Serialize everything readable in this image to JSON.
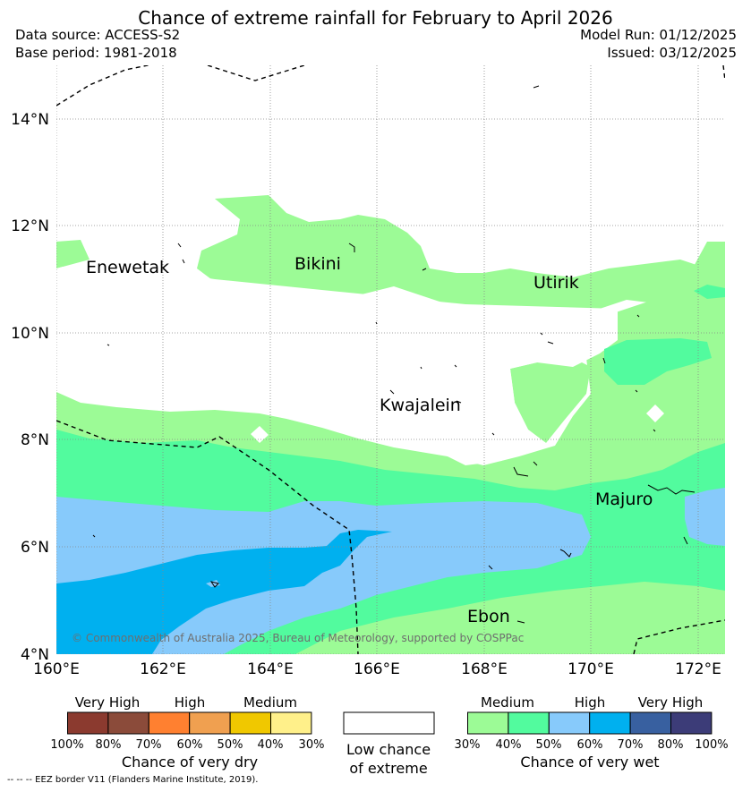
{
  "title": "Chance of extreme rainfall for February to April 2026",
  "data_source": "Data source: ACCESS-S2",
  "base_period": "Base period: 1981-2018",
  "model_run": "Model Run: 01/12/2025",
  "issued": "Issued: 03/12/2025",
  "map": {
    "lat_labels": [
      "14°N",
      "12°N",
      "10°N",
      "8°N",
      "6°N",
      "4°N"
    ],
    "lon_labels": [
      "160°E",
      "162°E",
      "164°E",
      "166°E",
      "168°E",
      "170°E",
      "172°E"
    ],
    "places": [
      {
        "name": "Enewetak"
      },
      {
        "name": "Bikini"
      },
      {
        "name": "Utirik"
      },
      {
        "name": "Kwajalein"
      },
      {
        "name": "Majuro"
      },
      {
        "name": "Ebon"
      }
    ],
    "copyright": "© Commonwealth of Australia 2025, Bureau of Meteorology, supported by COSPPac"
  },
  "legend": {
    "dry": {
      "heads": [
        "Very High",
        "High",
        "Medium"
      ],
      "ticks": [
        "100%",
        "80%",
        "70%",
        "60%",
        "50%",
        "40%",
        "30%"
      ],
      "colors": [
        "#8b3a2f",
        "#8b4b3a",
        "#ff8030",
        "#f0a050",
        "#f0c800",
        "#fff08a"
      ],
      "caption": "Chance of very dry"
    },
    "none": {
      "line1": "Low chance",
      "line2": "of extreme",
      "color": "#ffffff"
    },
    "wet": {
      "heads": [
        "Medium",
        "High",
        "Very High"
      ],
      "ticks": [
        "30%",
        "40%",
        "50%",
        "60%",
        "70%",
        "80%",
        "100%"
      ],
      "colors": [
        "#9cfb96",
        "#52fb9e",
        "#87cafb",
        "#00b0ef",
        "#3860a0",
        "#3c3c78"
      ],
      "caption": "Chance of very wet"
    }
  },
  "footer": "--  --  -- EEZ border V11 (Flanders Marine Institute, 2019)."
}
